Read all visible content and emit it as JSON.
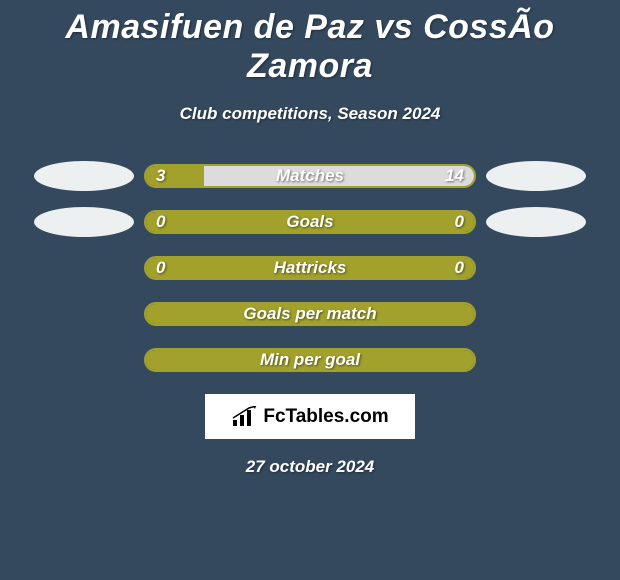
{
  "background_color": "#34495e",
  "title": "Amasifuen de Paz vs CossÃ­o Zamora",
  "subtitle": "Club competitions, Season 2024",
  "date": "27 october 2024",
  "logo_text": "FcTables.com",
  "badge_color": "#ecf0f1",
  "stats": [
    {
      "label": "Matches",
      "left_value": "3",
      "right_value": "14",
      "left_pct": 17.6,
      "right_pct": 82.4,
      "left_color": "#a2a12b",
      "right_color": "#dcdcdc",
      "border_color": "#a2a12b",
      "show_left_badge": true,
      "show_right_badge": true
    },
    {
      "label": "Goals",
      "left_value": "0",
      "right_value": "0",
      "left_pct": 50,
      "right_pct": 50,
      "left_color": "#a2a12b",
      "right_color": "#a2a12b",
      "border_color": "#a2a12b",
      "show_left_badge": true,
      "show_right_badge": true
    },
    {
      "label": "Hattricks",
      "left_value": "0",
      "right_value": "0",
      "left_pct": 50,
      "right_pct": 50,
      "left_color": "#a2a12b",
      "right_color": "#a2a12b",
      "border_color": "#a2a12b",
      "show_left_badge": false,
      "show_right_badge": false
    },
    {
      "label": "Goals per match",
      "left_value": "",
      "right_value": "",
      "left_pct": 50,
      "right_pct": 50,
      "left_color": "#a2a12b",
      "right_color": "#a2a12b",
      "border_color": "#a2a12b",
      "show_left_badge": false,
      "show_right_badge": false
    },
    {
      "label": "Min per goal",
      "left_value": "",
      "right_value": "",
      "left_pct": 50,
      "right_pct": 50,
      "left_color": "#a2a12b",
      "right_color": "#a2a12b",
      "border_color": "#a2a12b",
      "show_left_badge": false,
      "show_right_badge": false
    }
  ]
}
